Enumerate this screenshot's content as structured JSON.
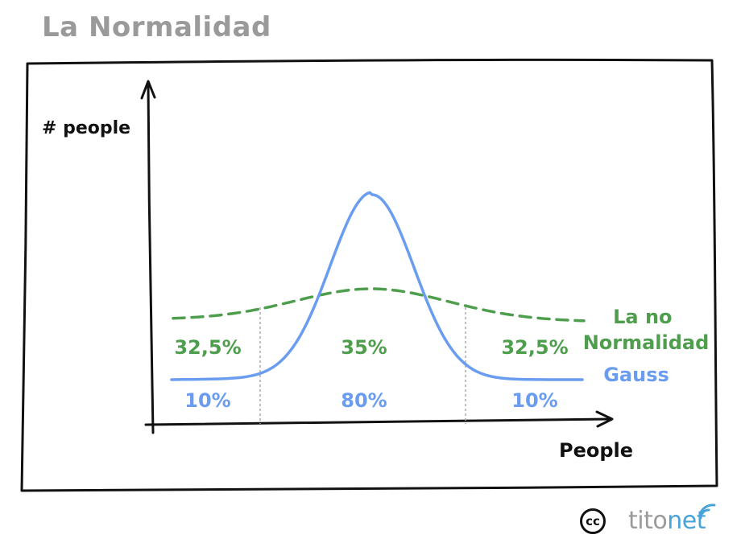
{
  "title": "La Normalidad",
  "colors": {
    "gauss": "#6a9cf0",
    "no_normalidad": "#4e9e4e",
    "axis": "#111111",
    "title": "#9a9a9a",
    "divider": "#aaaaaa"
  },
  "chart_data": {
    "type": "line",
    "xlabel": "People",
    "ylabel": "# people",
    "series": [
      {
        "name": "La no Normalidad",
        "style": "dashed",
        "segment_shares": [
          "32,5%",
          "35%",
          "32,5%"
        ]
      },
      {
        "name": "Gauss",
        "style": "solid",
        "segment_shares": [
          "10%",
          "80%",
          "10%"
        ]
      }
    ]
  },
  "footer": {
    "license_icon": "creative-commons-icon",
    "license_text": "cc",
    "brand_main": "tito",
    "brand_accent": "net"
  }
}
